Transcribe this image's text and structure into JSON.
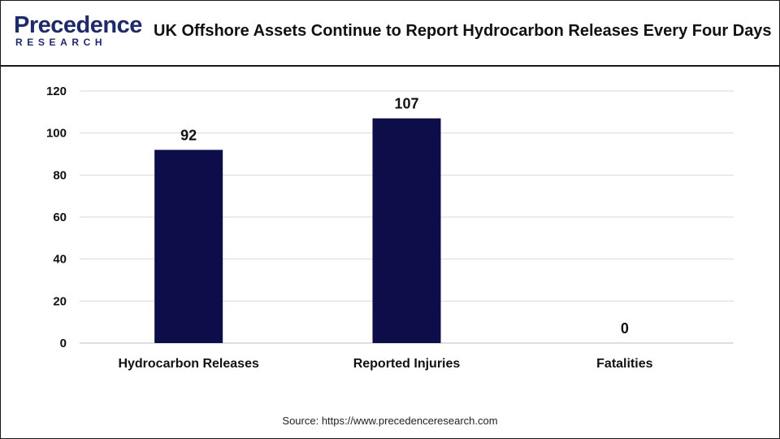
{
  "header": {
    "logo_main": "Precedence",
    "logo_sub": "RESEARCH",
    "title": "UK Offshore Assets Continue to Report Hydrocarbon Releases Every Four Days"
  },
  "source": "Source: https://www.precedenceresearch.com",
  "colors": {
    "bar": "#0d0d4a",
    "grid": "#d9d9d9",
    "text": "#111111",
    "brand": "#1f2a6b"
  },
  "chart_data": {
    "type": "bar",
    "categories": [
      "Hydrocarbon Releases",
      "Reported Injuries",
      "Fatalities"
    ],
    "values": [
      92,
      107,
      0
    ],
    "data_labels": [
      "92",
      "107",
      "0"
    ],
    "ylim": [
      0,
      120
    ],
    "yticks": [
      0,
      20,
      40,
      60,
      80,
      100,
      120
    ],
    "grid": true,
    "legend": "none"
  }
}
